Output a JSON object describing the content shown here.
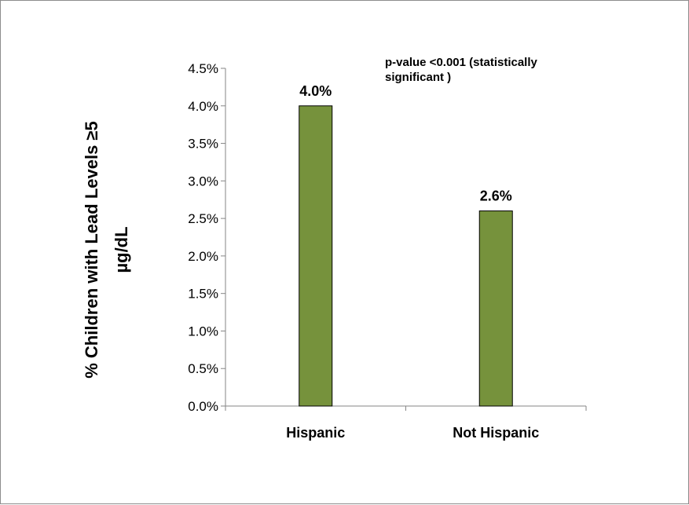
{
  "chart_data": {
    "type": "bar",
    "categories": [
      "Hispanic",
      "Not Hispanic"
    ],
    "values": [
      0.04,
      0.026
    ],
    "data_labels": [
      "4.0%",
      "2.6%"
    ],
    "ylim": [
      0,
      0.045
    ],
    "yticks": [
      0.0,
      0.005,
      0.01,
      0.015,
      0.02,
      0.025,
      0.03,
      0.035,
      0.04,
      0.045
    ],
    "ytick_labels": [
      "0.0%",
      "0.5%",
      "1.0%",
      "1.5%",
      "2.0%",
      "2.5%",
      "3.0%",
      "3.5%",
      "4.0%",
      "4.5%"
    ],
    "ylabel_line1": "% Children with Lead Levels ≥5",
    "ylabel_line2": "µg/dL",
    "xlabel": "",
    "title": "",
    "annotation_line1": "p-value <0.001 (statistically",
    "annotation_line2": "significant )",
    "bar_color": "#76923c",
    "grid": false,
    "legend": false
  }
}
